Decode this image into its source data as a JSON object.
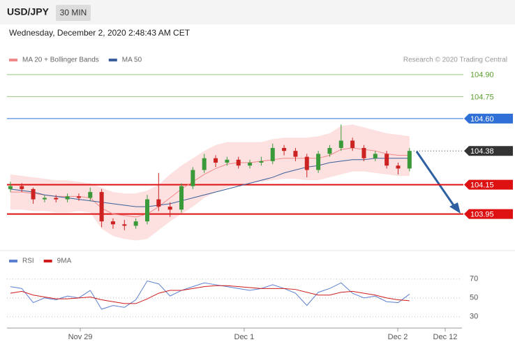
{
  "header": {
    "symbol": "USD/JPY",
    "interval": "30 MIN",
    "timestamp": "Wednesday, December 2, 2020 2:48:43 AM CET"
  },
  "chart_data": [
    {
      "type": "candlestick",
      "source": "Research © 2020 Trading Central",
      "open": [
        104.12,
        104.14,
        104.12,
        104.05,
        104.06,
        104.05,
        104.07,
        104.06,
        104.1,
        103.9,
        103.88,
        103.87,
        103.9,
        104.05,
        104.0,
        103.98,
        104.14,
        104.25,
        104.33,
        104.3,
        104.32,
        104.28,
        104.3,
        104.31,
        104.4,
        104.38,
        104.34,
        104.25,
        104.36,
        104.4,
        104.45,
        104.4,
        104.33,
        104.36,
        104.28,
        104.26
      ],
      "high": [
        104.17,
        104.16,
        104.13,
        104.08,
        104.08,
        104.09,
        104.09,
        104.13,
        104.12,
        103.92,
        103.91,
        103.92,
        104.08,
        104.23,
        104.03,
        104.16,
        104.27,
        104.36,
        104.35,
        104.34,
        104.34,
        104.32,
        104.34,
        104.43,
        104.42,
        104.4,
        104.36,
        104.38,
        104.42,
        104.56,
        104.47,
        104.42,
        104.38,
        104.38,
        104.3,
        104.4
      ],
      "low": [
        104.1,
        104.1,
        104.02,
        104.03,
        104.03,
        104.03,
        104.04,
        104.04,
        103.86,
        103.85,
        103.84,
        103.85,
        103.88,
        103.97,
        103.93,
        103.96,
        104.12,
        104.23,
        104.27,
        104.28,
        104.26,
        104.26,
        104.28,
        104.29,
        104.35,
        104.31,
        104.2,
        104.23,
        104.34,
        104.38,
        104.38,
        104.31,
        104.31,
        104.26,
        104.22,
        104.24
      ],
      "close": [
        104.14,
        104.12,
        104.05,
        104.06,
        104.05,
        104.07,
        104.06,
        104.1,
        103.9,
        103.88,
        103.87,
        103.9,
        104.05,
        104.0,
        103.98,
        104.14,
        104.25,
        104.33,
        104.3,
        104.32,
        104.28,
        104.3,
        104.31,
        104.4,
        104.38,
        104.34,
        104.25,
        104.36,
        104.4,
        104.45,
        104.4,
        104.33,
        104.36,
        104.28,
        104.26,
        104.38
      ],
      "up_color": "#3a9a3a",
      "down_color": "#cc2222",
      "overlays": [
        {
          "name": "MA 20 + Bollinger Bands",
          "color": "#f08a8a",
          "band_color": "#fde0e0",
          "values": [
            104.1,
            104.1,
            104.09,
            104.08,
            104.07,
            104.07,
            104.07,
            104.06,
            103.99,
            103.95,
            103.94,
            103.93,
            103.95,
            104.0,
            104.06,
            104.12,
            104.17,
            104.22,
            104.26,
            104.29,
            104.3,
            104.3,
            104.31,
            104.32,
            104.33,
            104.33,
            104.33,
            104.33,
            104.35,
            104.39,
            104.4,
            104.39,
            104.38,
            104.36,
            104.35,
            104.35
          ],
          "upper": [
            104.22,
            104.21,
            104.2,
            104.19,
            104.18,
            104.18,
            104.17,
            104.16,
            104.13,
            104.1,
            104.09,
            104.09,
            104.11,
            104.15,
            104.22,
            104.28,
            104.33,
            104.38,
            104.42,
            104.44,
            104.44,
            104.44,
            104.44,
            104.46,
            104.47,
            104.47,
            104.47,
            104.48,
            104.5,
            104.55,
            104.56,
            104.54,
            104.52,
            104.5,
            104.49,
            104.48
          ],
          "lower": [
            103.98,
            103.98,
            103.97,
            103.97,
            103.96,
            103.96,
            103.97,
            103.96,
            103.85,
            103.8,
            103.78,
            103.77,
            103.78,
            103.84,
            103.9,
            103.95,
            104.0,
            104.06,
            104.1,
            104.13,
            104.15,
            104.16,
            104.17,
            104.18,
            104.19,
            104.19,
            104.18,
            104.18,
            104.2,
            104.22,
            104.24,
            104.24,
            104.23,
            104.22,
            104.21,
            104.21
          ]
        },
        {
          "name": "MA 50",
          "color": "#3a5f9a",
          "values": [
            104.12,
            104.11,
            104.1,
            104.08,
            104.07,
            104.06,
            104.05,
            104.04,
            104.03,
            104.02,
            104.01,
            104.0,
            104.0,
            104.01,
            104.02,
            104.04,
            104.06,
            104.08,
            104.1,
            104.12,
            104.14,
            104.16,
            104.18,
            104.2,
            104.23,
            104.25,
            104.27,
            104.28,
            104.3,
            104.31,
            104.32,
            104.32,
            104.33,
            104.33,
            104.33,
            104.33
          ]
        }
      ],
      "levels": [
        {
          "value": 104.9,
          "label": "104.90",
          "color": "#5aa02c",
          "style": "thin",
          "tag": false
        },
        {
          "value": 104.75,
          "label": "104.75",
          "color": "#5aa02c",
          "style": "thin",
          "tag": false
        },
        {
          "value": 104.6,
          "label": "104.60",
          "color": "#2f6fd6",
          "style": "solid",
          "tag": true
        },
        {
          "value": 104.38,
          "label": "104.38",
          "color": "#333333",
          "style": "dotted",
          "tag": true
        },
        {
          "value": 104.15,
          "label": "104.15",
          "color": "#dd1111",
          "style": "thick",
          "tag": true
        },
        {
          "value": 103.95,
          "label": "103.95",
          "color": "#dd1111",
          "style": "thick",
          "tag": true
        }
      ],
      "xlim": [
        -0.3,
        39.6
      ],
      "ylim": [
        103.72,
        104.98
      ]
    },
    {
      "type": "line",
      "series": [
        {
          "name": "RSI",
          "color": "#5b7fd1",
          "values": [
            62,
            60,
            45,
            50,
            48,
            52,
            50,
            58,
            38,
            42,
            40,
            48,
            68,
            65,
            52,
            58,
            62,
            66,
            64,
            62,
            60,
            58,
            60,
            64,
            60,
            55,
            42,
            56,
            60,
            66,
            55,
            50,
            52,
            46,
            45,
            54
          ]
        },
        {
          "name": "9MA",
          "color": "#d01c1c",
          "values": [
            55,
            57,
            53,
            51,
            49,
            49,
            50,
            51,
            48,
            46,
            44,
            44,
            49,
            55,
            58,
            58,
            60,
            62,
            63,
            63,
            62,
            61,
            60,
            60,
            60,
            59,
            56,
            53,
            53,
            56,
            57,
            55,
            53,
            50,
            48,
            47
          ]
        }
      ],
      "xlim": [
        -0.3,
        39.6
      ],
      "ylim": [
        18,
        81
      ],
      "yticks": [
        30,
        50,
        70
      ],
      "xticks": [
        {
          "value": 6.13,
          "label": "Nov 29"
        },
        {
          "value": 20.5,
          "label": "Dec 1"
        },
        {
          "value": 33.97,
          "label": "Dec 2"
        },
        {
          "value": 38.13,
          "label": "Dec 12"
        }
      ]
    }
  ]
}
